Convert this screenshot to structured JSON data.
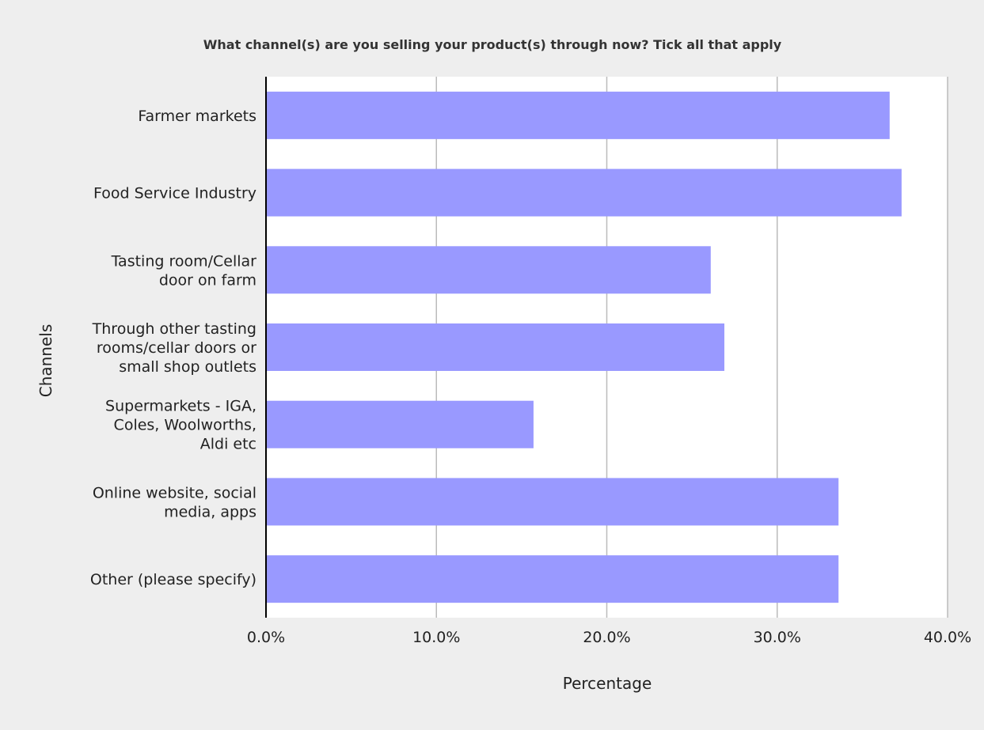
{
  "chart_data": {
    "type": "bar",
    "orientation": "horizontal",
    "title": "What channel(s) are you selling your product(s) through now? Tick all that apply",
    "xlabel": "Percentage",
    "ylabel": "Channels",
    "categories": [
      [
        "Farmer markets"
      ],
      [
        "Food Service Industry"
      ],
      [
        "Tasting room/Cellar",
        "door on farm"
      ],
      [
        "Through other tasting",
        "rooms/cellar doors or",
        "small shop outlets"
      ],
      [
        "Supermarkets - IGA,",
        "Coles, Woolworths,",
        "Aldi etc"
      ],
      [
        "Online website, social",
        "media, apps"
      ],
      [
        "Other (please specify)"
      ]
    ],
    "values": [
      36.6,
      37.3,
      26.1,
      26.9,
      15.7,
      33.6,
      33.6
    ],
    "xlim": [
      0,
      40
    ],
    "xticks": [
      0,
      10,
      20,
      30,
      40
    ],
    "xtick_labels": [
      "0.0%",
      "10.0%",
      "20.0%",
      "30.0%",
      "40.0%"
    ],
    "grid": true,
    "legend": "none",
    "colors": {
      "bar": "#9999ff",
      "background": "#eeeeee",
      "plot_background": "#ffffff",
      "grid": "#bbbbbb",
      "axis": "#000000"
    }
  }
}
